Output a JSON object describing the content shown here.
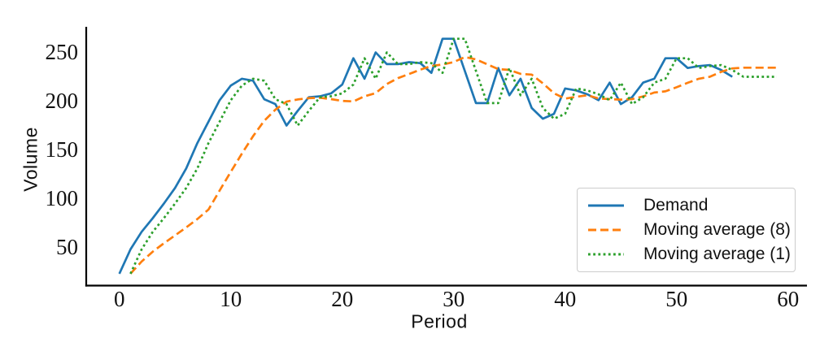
{
  "figure": {
    "background_color": "#ffffff",
    "axis_color": "#000000",
    "legend_border_color": "#cccccc"
  },
  "chart_data": {
    "type": "line",
    "title": "",
    "xlabel": "Period",
    "ylabel": "Volume",
    "x_ticks": [
      0,
      10,
      20,
      30,
      40,
      50,
      60
    ],
    "y_ticks": [
      50,
      100,
      150,
      200,
      250
    ],
    "xlim": [
      -3.3,
      61.7
    ],
    "ylim": [
      9,
      276
    ],
    "grid": false,
    "legend_position": "lower right",
    "series": [
      {
        "name": "Demand",
        "color": "#1f77b4",
        "line_style": "solid",
        "x_start": 0,
        "values": [
          22,
          47,
          65,
          79,
          94,
          110,
          130,
          156,
          178,
          200,
          215,
          222,
          220,
          201,
          196,
          174,
          189,
          203,
          204,
          207,
          216,
          243,
          222,
          249,
          237,
          237,
          239,
          238,
          228,
          263,
          263,
          230,
          197,
          197,
          233,
          205,
          222,
          192,
          181,
          186,
          212,
          210,
          206,
          200,
          218,
          196,
          203,
          218,
          222,
          243,
          243,
          233,
          235,
          236,
          231,
          224
        ]
      },
      {
        "name": "Moving average (8)",
        "color": "#ff7f0e",
        "line_style": "dashed",
        "x_start": 1,
        "values": [
          22,
          34.5,
          44.67,
          53.25,
          61.4,
          69.5,
          78.14,
          87.88,
          107.38,
          126.5,
          145.25,
          163.13,
          178.88,
          190.25,
          198.5,
          200.75,
          202.13,
          202.5,
          201.13,
          199.25,
          198.75,
          204,
          207.25,
          216.63,
          222.63,
          226.88,
          231.25,
          235.13,
          236.63,
          239.13,
          244.25,
          241.88,
          236.88,
          231.88,
          231.13,
          227,
          226.25,
          217.38,
          207.13,
          201.63,
          203.5,
          205.13,
          201.75,
          201.13,
          200.63,
          201.13,
          203.88,
          207.88,
          209.13,
          213.25,
          217.88,
          222,
          224.13,
          229.13,
          232.63,
          233.38,
          233.38,
          233.38,
          233.38
        ]
      },
      {
        "name": "Moving average (1)",
        "color": "#2ca02c",
        "line_style": "dotted",
        "x_start": 1,
        "values": [
          22,
          47,
          65,
          79,
          94,
          110,
          130,
          156,
          178,
          200,
          215,
          222,
          220,
          201,
          196,
          174,
          189,
          203,
          204,
          207,
          216,
          243,
          222,
          249,
          237,
          237,
          239,
          238,
          228,
          263,
          263,
          230,
          197,
          197,
          233,
          205,
          222,
          192,
          181,
          186,
          212,
          210,
          206,
          200,
          218,
          196,
          203,
          218,
          222,
          243,
          243,
          233,
          235,
          236,
          231,
          224,
          224,
          224,
          224
        ]
      }
    ]
  }
}
